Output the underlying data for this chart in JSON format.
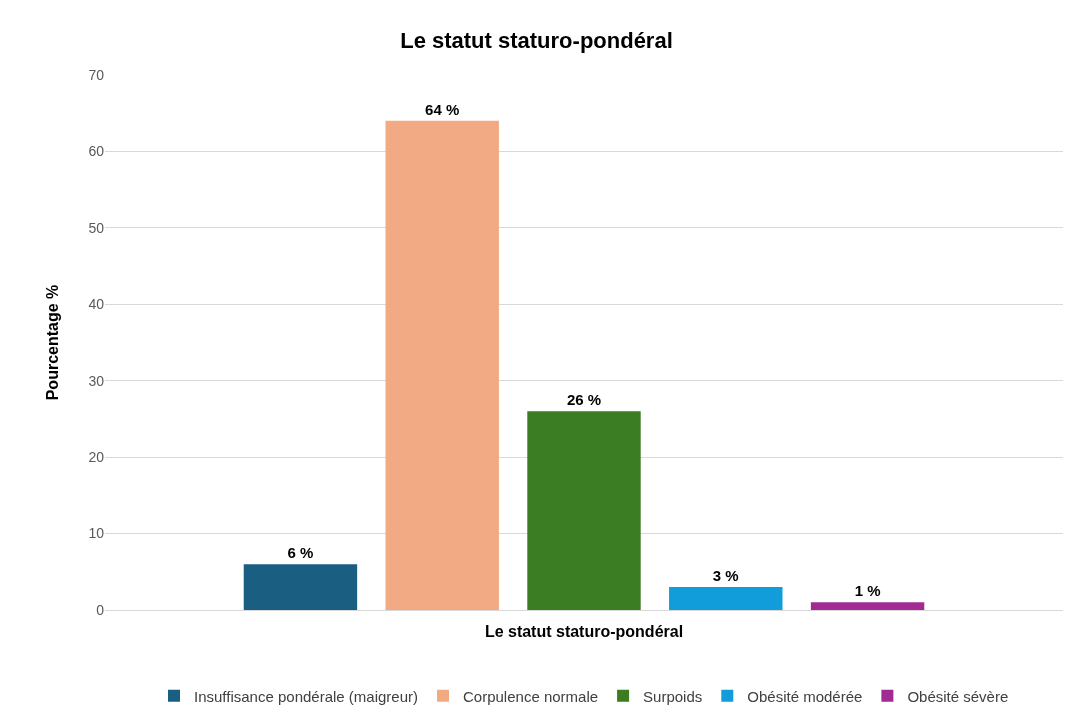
{
  "chart_data": {
    "type": "bar",
    "title": "Le statut staturo-pondéral",
    "xlabel": "Le statut staturo-pondéral",
    "ylabel": "Pourcentage %",
    "categories": [
      null
    ],
    "series": [
      {
        "name": "Insuffisance pondérale (maigreur)",
        "color": "#1a5e82",
        "values": [
          6
        ],
        "value_labels": [
          "6 %"
        ]
      },
      {
        "name": "Corpulence normale",
        "color": "#f2aa84",
        "values": [
          64
        ],
        "value_labels": [
          "64 %"
        ]
      },
      {
        "name": "Surpoids",
        "color": "#3a7d22",
        "values": [
          26
        ],
        "value_labels": [
          "26 %"
        ]
      },
      {
        "name": "Obésité modérée",
        "color": "#109dd9",
        "values": [
          3
        ],
        "value_labels": [
          "3 %"
        ]
      },
      {
        "name": "Obésité sévère",
        "color": "#a02b93",
        "values": [
          1
        ],
        "value_labels": [
          "1 %"
        ]
      }
    ],
    "ylim": [
      0,
      70
    ],
    "yticks": [
      0,
      10,
      20,
      30,
      40,
      50,
      60,
      70
    ],
    "grid": "y",
    "legend": "bottom"
  }
}
